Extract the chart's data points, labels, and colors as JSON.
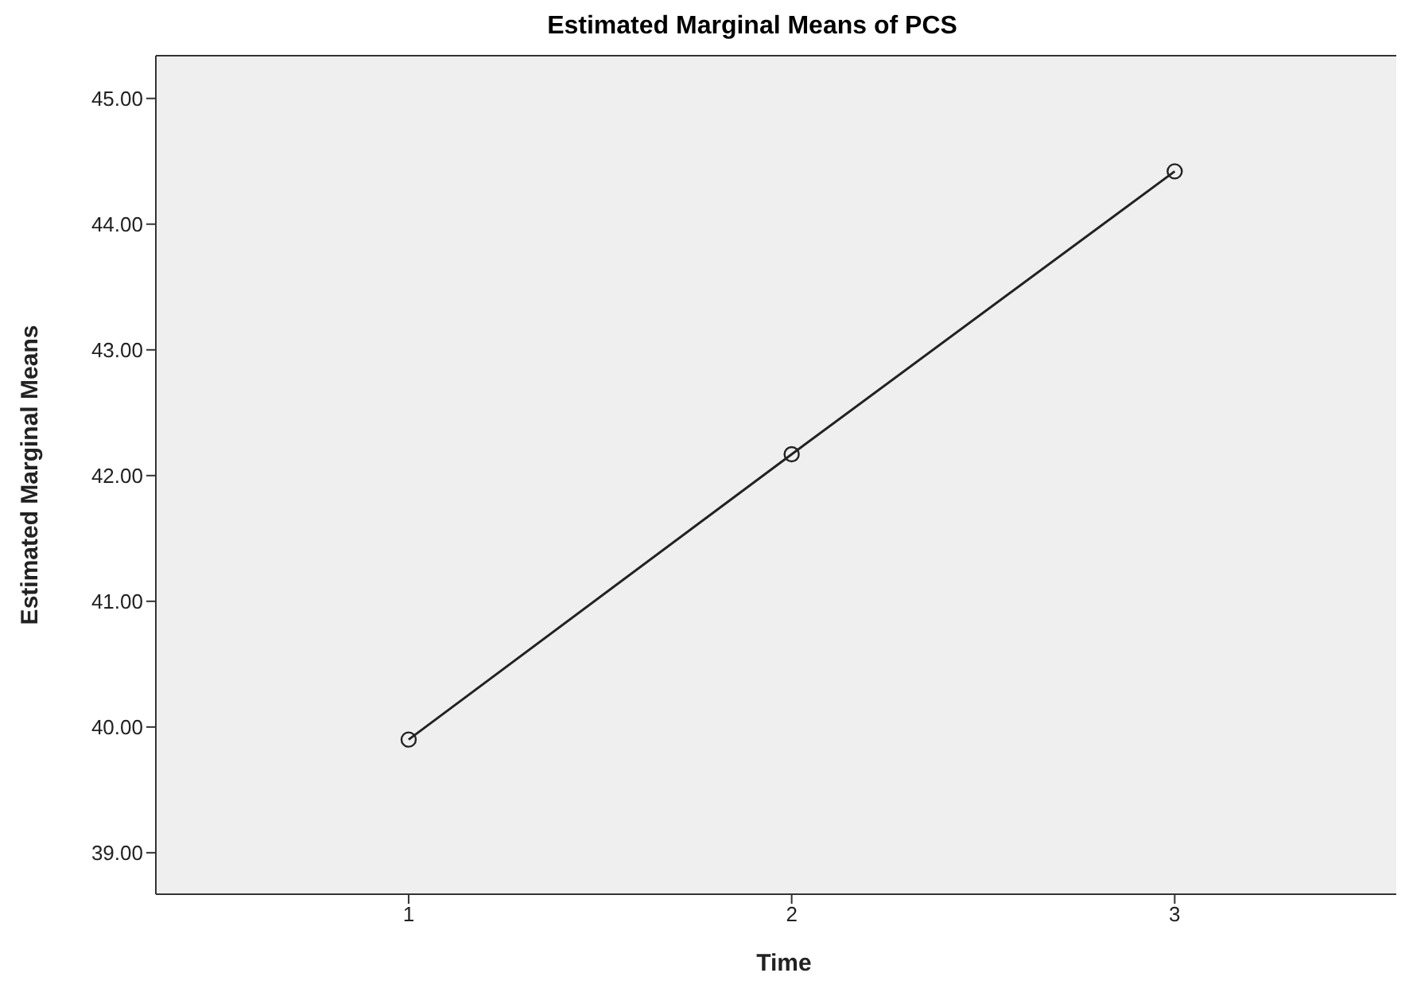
{
  "chart_data": {
    "type": "line",
    "title": "Estimated Marginal Means of PCS",
    "xlabel": "Time",
    "ylabel": "Estimated Marginal Means",
    "x": [
      1,
      2,
      3
    ],
    "series": [
      {
        "color": "#222222",
        "values": [
          39.9,
          42.17,
          44.42
        ]
      }
    ],
    "xlim": [
      0.34,
      3.62
    ],
    "xticks": [
      1,
      2,
      3
    ],
    "ylim": [
      38.67,
      45.34
    ],
    "yticks": [
      {
        "value": 39,
        "label": "39.00"
      },
      {
        "value": 40,
        "label": "40.00"
      },
      {
        "value": 41,
        "label": "41.00"
      },
      {
        "value": 42,
        "label": "42.00"
      },
      {
        "value": 43,
        "label": "43.00"
      },
      {
        "value": 44,
        "label": "44.00"
      },
      {
        "value": 45,
        "label": "45.00"
      }
    ],
    "grid": false,
    "marker": "circle",
    "line_style": "solid"
  }
}
